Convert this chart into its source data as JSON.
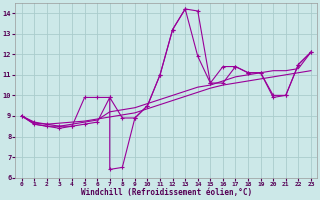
{
  "xlabel": "Windchill (Refroidissement éolien,°C)",
  "background_color": "#cce8e8",
  "grid_color": "#aacccc",
  "line_color": "#990099",
  "xlim": [
    -0.5,
    23.5
  ],
  "ylim": [
    6,
    14.5
  ],
  "xticks": [
    0,
    1,
    2,
    3,
    4,
    5,
    6,
    7,
    8,
    9,
    10,
    11,
    12,
    13,
    14,
    15,
    16,
    17,
    18,
    19,
    20,
    21,
    22,
    23
  ],
  "yticks": [
    6,
    7,
    8,
    9,
    10,
    11,
    12,
    13,
    14
  ],
  "series1_x": [
    0,
    1,
    2,
    3,
    4,
    5,
    6,
    7,
    8,
    9,
    10,
    11,
    12,
    13,
    14,
    15,
    16,
    17,
    18,
    19,
    20,
    21,
    22,
    23
  ],
  "series1_y": [
    9.0,
    8.7,
    8.6,
    8.5,
    8.5,
    9.9,
    9.9,
    9.9,
    8.9,
    8.9,
    9.5,
    11.0,
    13.2,
    14.2,
    14.1,
    10.6,
    10.6,
    11.4,
    11.1,
    11.1,
    9.9,
    10.0,
    11.5,
    12.1
  ],
  "series2_x": [
    0,
    1,
    2,
    3,
    4,
    5,
    6,
    7,
    8,
    9,
    10,
    11,
    12,
    13,
    14,
    15,
    16,
    17,
    18,
    19,
    20,
    21,
    22,
    23
  ],
  "series2_y": [
    9.0,
    8.65,
    8.6,
    8.65,
    8.7,
    8.75,
    8.85,
    8.95,
    9.05,
    9.15,
    9.35,
    9.55,
    9.75,
    9.95,
    10.15,
    10.35,
    10.5,
    10.6,
    10.7,
    10.8,
    10.9,
    11.0,
    11.1,
    11.2
  ],
  "series3_x": [
    0,
    1,
    2,
    3,
    4,
    5,
    6,
    7,
    8,
    9,
    10,
    11,
    12,
    13,
    14,
    15,
    16,
    17,
    18,
    19,
    20,
    21,
    22,
    23
  ],
  "series3_y": [
    9.0,
    8.6,
    8.5,
    8.5,
    8.6,
    8.7,
    8.8,
    9.2,
    9.3,
    9.4,
    9.6,
    9.8,
    10.0,
    10.2,
    10.4,
    10.5,
    10.7,
    10.9,
    11.0,
    11.1,
    11.2,
    11.2,
    11.3,
    12.1
  ],
  "series4_x": [
    0,
    1,
    2,
    3,
    4,
    5,
    6,
    7,
    7,
    8,
    9,
    10,
    11,
    12,
    13,
    14,
    15,
    16,
    17,
    18,
    19,
    20,
    21,
    22,
    23
  ],
  "series4_y": [
    9.0,
    8.6,
    8.5,
    8.4,
    8.5,
    8.6,
    8.7,
    9.9,
    6.4,
    6.5,
    8.9,
    9.5,
    11.0,
    13.2,
    14.2,
    11.9,
    10.6,
    11.4,
    11.4,
    11.1,
    11.1,
    10.0,
    10.0,
    11.5,
    12.1
  ]
}
